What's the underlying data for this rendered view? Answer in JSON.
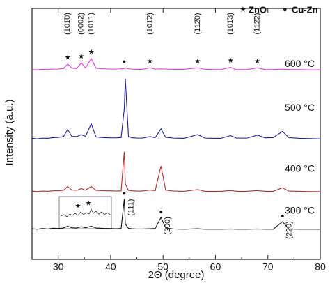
{
  "chart_data": {
    "type": "line",
    "x_label": "2Θ (degree)",
    "y_label": "Intensity (a.u.)",
    "xlim": [
      25,
      80
    ],
    "xticks": [
      30,
      40,
      50,
      60,
      70,
      80
    ],
    "ylim": [
      0,
      100
    ],
    "x": [
      25,
      26,
      27,
      28,
      29,
      30,
      31,
      31.8,
      32.6,
      33.5,
      34.4,
      35.2,
      36.3,
      37.2,
      38,
      39,
      40,
      41,
      42,
      42.6,
      42.8,
      43.4,
      44,
      45,
      46,
      47.5,
      48.5,
      49.6,
      50.5,
      52,
      54,
      56.6,
      58,
      60,
      61,
      62.9,
      64,
      66,
      68,
      69.5,
      71,
      72.8,
      74,
      76,
      78,
      80
    ],
    "series": [
      {
        "name": "300 °C",
        "color": "#111111",
        "values": [
          12.2,
          12.0,
          12.3,
          12.1,
          12.4,
          12.3,
          12.5,
          13.2,
          12.6,
          12.5,
          13.0,
          12.6,
          13.2,
          12.5,
          12.4,
          12.3,
          12.3,
          12.2,
          12.3,
          24.0,
          14.0,
          12.4,
          12.2,
          12.1,
          12.1,
          12.2,
          12.3,
          16.7,
          12.5,
          12.1,
          12.0,
          12.2,
          12.0,
          12.0,
          12.0,
          12.1,
          12.0,
          12.0,
          12.1,
          12.0,
          12.0,
          15.0,
          12.1,
          12.0,
          12.0,
          12.0
        ]
      },
      {
        "name": "400 °C",
        "color": "#b03030",
        "values": [
          27.2,
          27.0,
          27.2,
          27.1,
          27.3,
          27.3,
          27.5,
          29.0,
          27.6,
          27.5,
          28.2,
          27.6,
          29.0,
          27.5,
          27.4,
          27.3,
          27.3,
          27.2,
          27.3,
          42.8,
          30.0,
          27.5,
          27.3,
          27.2,
          27.2,
          27.6,
          27.4,
          37.2,
          27.6,
          27.2,
          27.1,
          27.8,
          27.1,
          27.1,
          27.1,
          27.4,
          27.1,
          27.1,
          27.4,
          27.1,
          27.1,
          28.5,
          27.2,
          27.1,
          27.0,
          27.0
        ]
      },
      {
        "name": "500 °C",
        "color": "#1a1a9a",
        "values": [
          48.2,
          48.0,
          48.3,
          48.2,
          48.5,
          48.6,
          48.9,
          51.7,
          49.0,
          48.9,
          49.7,
          49.0,
          54.0,
          48.8,
          48.6,
          48.5,
          48.4,
          48.4,
          48.5,
          60.0,
          72.0,
          49.0,
          48.5,
          48.3,
          48.3,
          48.9,
          48.5,
          52.0,
          48.6,
          48.3,
          48.2,
          49.7,
          48.3,
          48.2,
          48.2,
          49.3,
          48.3,
          48.3,
          49.5,
          48.4,
          48.5,
          51.0,
          48.5,
          48.2,
          48.1,
          48.0
        ]
      },
      {
        "name": "600 °C",
        "color": "#e03ce0",
        "values": [
          75.6,
          75.5,
          75.7,
          75.6,
          75.8,
          75.8,
          76.0,
          77.8,
          76.2,
          76.0,
          78.3,
          76.3,
          80.0,
          76.2,
          76.0,
          75.9,
          75.8,
          75.8,
          75.9,
          76.0,
          76.3,
          75.9,
          75.8,
          75.7,
          75.7,
          76.3,
          75.8,
          75.9,
          75.8,
          75.7,
          75.7,
          76.3,
          75.7,
          75.6,
          75.6,
          76.5,
          75.6,
          75.6,
          76.3,
          75.6,
          75.6,
          75.8,
          75.6,
          75.6,
          75.5,
          75.5
        ]
      }
    ],
    "legend": [
      {
        "symbol": "★",
        "label": "ZnO"
      },
      {
        "symbol": "●",
        "label": "Cu-Zn"
      }
    ],
    "zno_peaks": [
      {
        "label": "(101̄0)",
        "x": 31.8
      },
      {
        "label": "(0002)",
        "x": 34.4
      },
      {
        "label": "(101̄1)",
        "x": 36.3
      },
      {
        "label": "(101̄2)",
        "x": 47.5
      },
      {
        "label": "(112̄0)",
        "x": 56.6
      },
      {
        "label": "(101̄3)",
        "x": 62.9
      },
      {
        "label": "(112̄2)",
        "x": 68
      }
    ],
    "cuzn_peaks": [
      {
        "label": "(111)",
        "x": 42.6
      },
      {
        "label": "(200)",
        "x": 49.6
      },
      {
        "label": "(220)",
        "x": 72.8
      }
    ]
  }
}
